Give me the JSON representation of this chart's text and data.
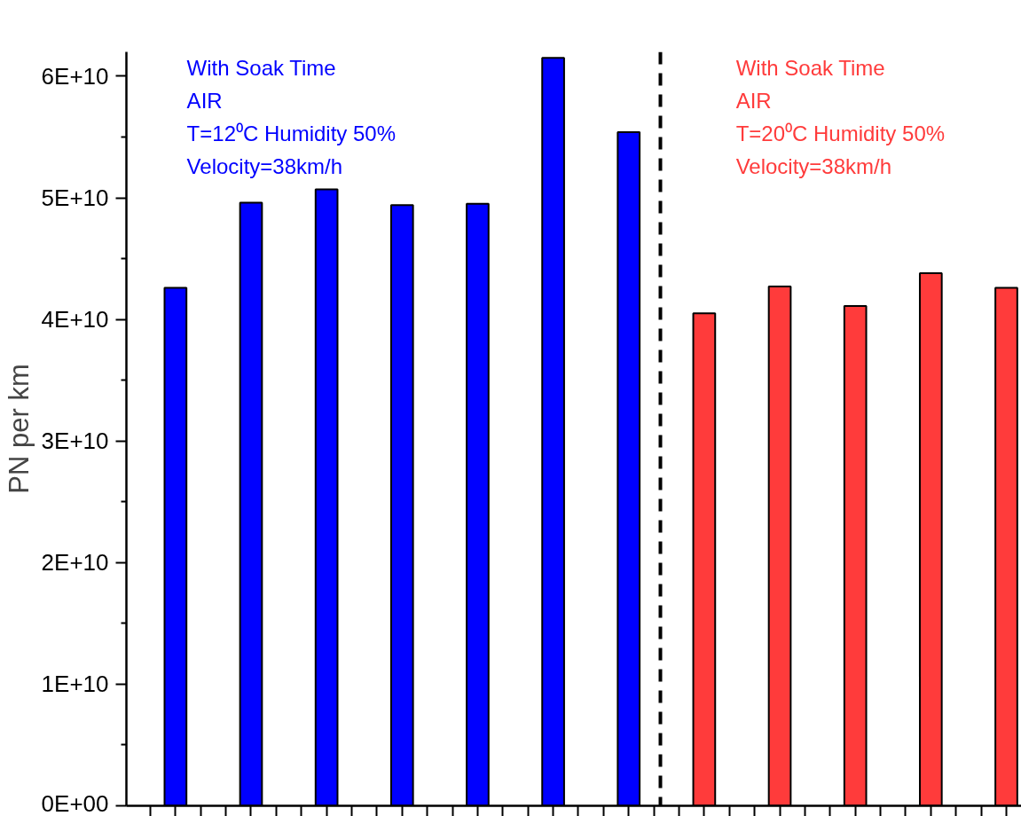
{
  "chart_data": {
    "type": "bar",
    "ylabel": "PN per km",
    "categories": [
      null,
      null,
      null,
      null,
      null,
      null,
      null,
      null,
      null,
      null,
      null,
      null
    ],
    "values": [
      42600000000.0,
      49600000000.0,
      50700000000.0,
      49400000000.0,
      49500000000.0,
      61500000000.0,
      55400000000.0,
      40500000000.0,
      42700000000.0,
      41100000000.0,
      43800000000.0,
      42600000000.0
    ],
    "colors": [
      "#0000ff",
      "#0000ff",
      "#0000ff",
      "#0000ff",
      "#0000ff",
      "#0000ff",
      "#0000ff",
      "#ff3b3b",
      "#ff3b3b",
      "#ff3b3b",
      "#ff3b3b",
      "#ff3b3b"
    ],
    "annotations": [
      "With Soak Time\nAIR\nT=12⁰C Humidity 50%\nVelocity=38km/h",
      "With Soak Time\nAIR\nT=20⁰C Humidity 50%\nVelocity=38km/h"
    ],
    "ylim": [
      0,
      62000000000.0
    ],
    "yticks": [
      {
        "value": 0,
        "label": "0E+00"
      },
      {
        "value": 10000000000.0,
        "label": "1E+10"
      },
      {
        "value": 20000000000.0,
        "label": "2E+10"
      },
      {
        "value": 30000000000.0,
        "label": "3E+10"
      },
      {
        "value": 40000000000.0,
        "label": "4E+10"
      },
      {
        "value": 50000000000.0,
        "label": "5E+10"
      },
      {
        "value": 60000000000.0,
        "label": "6E+10"
      }
    ],
    "tick_labels": "y"
  }
}
